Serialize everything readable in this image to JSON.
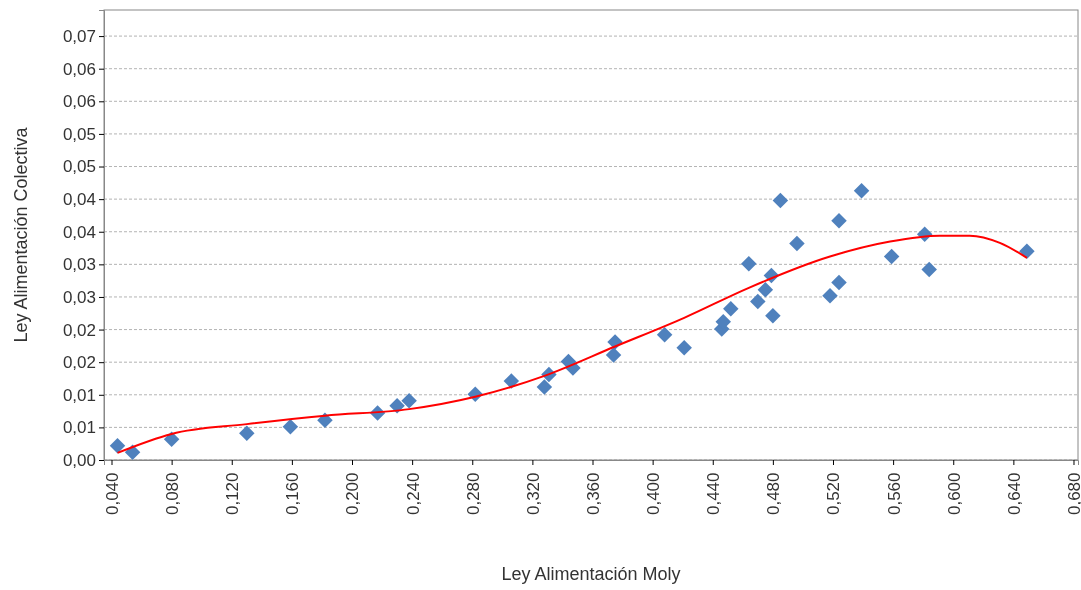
{
  "chart_data": {
    "type": "scatter",
    "xlabel": "Ley Alimentación Moly",
    "ylabel": "Ley Alimentación Colectiva",
    "xlim": [
      0.035,
      0.683
    ],
    "ylim": [
      0,
      0.069
    ],
    "xticks": [
      {
        "value": 0.04,
        "label": "0,040"
      },
      {
        "value": 0.08,
        "label": "0,080"
      },
      {
        "value": 0.12,
        "label": "0,120"
      },
      {
        "value": 0.16,
        "label": "0,160"
      },
      {
        "value": 0.2,
        "label": "0,200"
      },
      {
        "value": 0.24,
        "label": "0,240"
      },
      {
        "value": 0.28,
        "label": "0,280"
      },
      {
        "value": 0.32,
        "label": "0,320"
      },
      {
        "value": 0.36,
        "label": "0,360"
      },
      {
        "value": 0.4,
        "label": "0,400"
      },
      {
        "value": 0.44,
        "label": "0,440"
      },
      {
        "value": 0.48,
        "label": "0,480"
      },
      {
        "value": 0.52,
        "label": "0,520"
      },
      {
        "value": 0.56,
        "label": "0,560"
      },
      {
        "value": 0.6,
        "label": "0,600"
      },
      {
        "value": 0.64,
        "label": "0,640"
      },
      {
        "value": 0.68,
        "label": "0,680"
      }
    ],
    "yticks": [
      {
        "value": 0,
        "label": "0,00"
      },
      {
        "value": 0.005,
        "label": "0,01"
      },
      {
        "value": 0.01,
        "label": "0,01"
      },
      {
        "value": 0.015,
        "label": "0,02"
      },
      {
        "value": 0.02,
        "label": "0,02"
      },
      {
        "value": 0.025,
        "label": "0,03"
      },
      {
        "value": 0.03,
        "label": "0,03"
      },
      {
        "value": 0.035,
        "label": "0,04"
      },
      {
        "value": 0.04,
        "label": "0,04"
      },
      {
        "value": 0.045,
        "label": "0,05"
      },
      {
        "value": 0.05,
        "label": "0,05"
      },
      {
        "value": 0.055,
        "label": "0,06"
      },
      {
        "value": 0.06,
        "label": "0,06"
      },
      {
        "value": 0.065,
        "label": "0,07"
      }
    ],
    "grid": "y",
    "series": [
      {
        "marker": "diamond",
        "color": "#4f81bd",
        "x": [
          0.044,
          0.054,
          0.08,
          0.13,
          0.159,
          0.182,
          0.217,
          0.23,
          0.238,
          0.282,
          0.306,
          0.328,
          0.331,
          0.344,
          0.347,
          0.375,
          0.374,
          0.408,
          0.421,
          0.446,
          0.447,
          0.452,
          0.464,
          0.47,
          0.475,
          0.479,
          0.48,
          0.485,
          0.496,
          0.518,
          0.524,
          0.524,
          0.539,
          0.559,
          0.581,
          0.584,
          0.649
        ],
        "values": [
          0.0022,
          0.0012,
          0.0032,
          0.0041,
          0.0051,
          0.0061,
          0.0072,
          0.0083,
          0.0091,
          0.0101,
          0.0121,
          0.0112,
          0.0131,
          0.0151,
          0.0141,
          0.0181,
          0.0161,
          0.0192,
          0.0172,
          0.0201,
          0.0212,
          0.0232,
          0.0301,
          0.0243,
          0.0261,
          0.0283,
          0.0221,
          0.0398,
          0.0332,
          0.0252,
          0.0272,
          0.0367,
          0.0413,
          0.0312,
          0.0346,
          0.0292,
          0.032
        ]
      },
      {
        "type": "line",
        "color": "#ff0000",
        "x": [
          0.044,
          0.08,
          0.13,
          0.182,
          0.238,
          0.282,
          0.328,
          0.375,
          0.421,
          0.464,
          0.518,
          0.558,
          0.591,
          0.611,
          0.631,
          0.649
        ],
        "values": [
          0.0011,
          0.004,
          0.0055,
          0.0068,
          0.0078,
          0.0097,
          0.0129,
          0.0174,
          0.0218,
          0.0264,
          0.0312,
          0.0335,
          0.0344,
          0.0344,
          0.0333,
          0.031
        ]
      }
    ]
  }
}
